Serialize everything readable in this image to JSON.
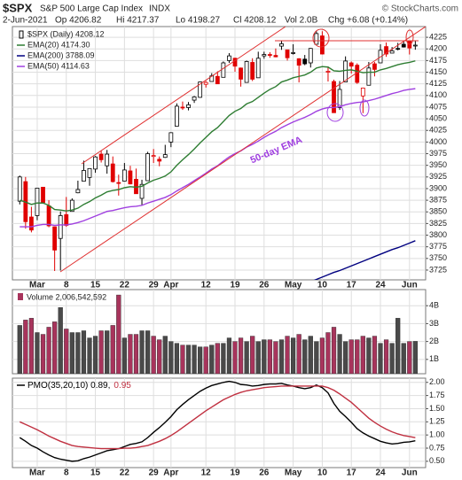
{
  "header": {
    "symbol": "$SPX",
    "name": "S&P 500 Large Cap Index",
    "exchange": "INDX",
    "copyright": "© StockCharts.com",
    "stats": [
      "2-Jun-2021",
      "Op 4206.82",
      "Hi 4217.37",
      "Lo 4198.27",
      "Cl 4208.12",
      "Vol 2.0B",
      "Chg +6.08 (+0.14%)"
    ]
  },
  "chart_data": [
    {
      "type": "candlestick",
      "name": "$SPX (Daily) 4208.12",
      "annotation": "50-day EMA",
      "legend": "upper left",
      "grid": true,
      "up_color": "#000000",
      "down_color": "#e00000",
      "categories": [
        null,
        null,
        null,
        "Mar",
        null,
        null,
        null,
        null,
        "8",
        null,
        null,
        null,
        null,
        "15",
        null,
        null,
        null,
        null,
        "22",
        null,
        null,
        null,
        null,
        "29",
        null,
        null,
        "Apr",
        null,
        null,
        null,
        null,
        null,
        "12",
        null,
        null,
        null,
        null,
        "19",
        null,
        null,
        null,
        null,
        "26",
        null,
        null,
        null,
        null,
        "May",
        null,
        null,
        null,
        null,
        "10",
        null,
        null,
        null,
        null,
        "17",
        null,
        null,
        null,
        null,
        "24",
        null,
        null,
        null,
        null,
        "Jun",
        null
      ],
      "open": [
        3873,
        3915,
        3839,
        3842,
        3903,
        3863,
        3818,
        3793,
        3844,
        3851,
        3891,
        3916,
        3924,
        3942,
        3974,
        3949,
        3953,
        3913,
        3916,
        3938,
        3920,
        3879,
        3917,
        3969,
        3963,
        3967,
        4000,
        4034,
        4075,
        4074,
        4090,
        4096,
        4124,
        4130,
        4141,
        4139,
        4175,
        4180,
        4159,
        4128,
        4171,
        4138,
        4185,
        4188,
        4186,
        4206,
        4198,
        4191,
        4179,
        4178,
        4170,
        4210,
        4228,
        4150,
        4130,
        4074,
        4129,
        4170,
        4165,
        4099,
        4122,
        4168,
        4170,
        4205,
        4191,
        4201,
        4210,
        4216,
        4206.82
      ],
      "high": [
        3928,
        3925,
        3861,
        3901,
        3903,
        3875,
        3818,
        3851,
        3882,
        3879,
        3917,
        3960,
        3944,
        3970,
        3981,
        3983,
        3969,
        3930,
        3955,
        3949,
        3943,
        3919,
        3979,
        3985,
        3969,
        3994,
        4021,
        4083,
        4087,
        4086,
        4099,
        4130,
        4131,
        4148,
        4152,
        4173,
        4191,
        4181,
        4160,
        4175,
        4180,
        4194,
        4194,
        4193,
        4201,
        4218,
        4198,
        4210,
        4180,
        4187,
        4202,
        4238,
        4238,
        4162,
        4134,
        4131,
        4184,
        4173,
        4169,
        4117,
        4172,
        4172,
        4210,
        4214,
        4204,
        4213,
        4218,
        4218,
        4217.37
      ],
      "low": [
        3866,
        3814,
        3806,
        3832,
        3868,
        3817,
        3723,
        3724,
        3818,
        3851,
        3890,
        3916,
        3906,
        3934,
        3956,
        3932,
        3913,
        3885,
        3915,
        3909,
        3889,
        3864,
        3917,
        3955,
        3948,
        3966,
        3989,
        4034,
        4069,
        4068,
        4084,
        4095,
        4117,
        4130,
        4125,
        4139,
        4170,
        4151,
        4119,
        4128,
        4131,
        4138,
        4179,
        4181,
        4182,
        4198,
        4175,
        4188,
        4128,
        4165,
        4160,
        4210,
        4188,
        4130,
        4063,
        4069,
        4129,
        4147,
        4125,
        4062,
        4122,
        4141,
        4170,
        4183,
        4191,
        4197,
        4203,
        4188,
        4198.27
      ],
      "close": [
        3925,
        3829,
        3811,
        3901,
        3870,
        3820,
        3768,
        3842,
        3821,
        3875,
        3898,
        3939,
        3943,
        3968,
        3962,
        3974,
        3915,
        3913,
        3940,
        3910,
        3889,
        3909,
        3975,
        3971,
        3959,
        3973,
        4020,
        4077,
        4074,
        4080,
        4097,
        4129,
        4128,
        4142,
        4125,
        4170,
        4185,
        4163,
        4135,
        4173,
        4135,
        4180,
        4188,
        4187,
        4183,
        4211,
        4181,
        4192,
        4165,
        4168,
        4201,
        4233,
        4189,
        4152,
        4063,
        4113,
        4174,
        4163,
        4128,
        4116,
        4159,
        4156,
        4197,
        4189,
        4196,
        4201,
        4204,
        4202,
        4208.12
      ],
      "series": [
        {
          "name": "EMA(20) 4174.30",
          "color": "#2e7d32",
          "values": [
            3875,
            3871,
            3866,
            3869,
            3869,
            3864,
            3855,
            3854,
            3852,
            3854,
            3858,
            3866,
            3872,
            3880,
            3886,
            3893,
            3896,
            3898,
            3902,
            3904,
            3903,
            3905,
            3912,
            3918,
            3922,
            3927,
            3936,
            3950,
            3962,
            3973,
            3985,
            3998,
            4010,
            4022,
            4031,
            4044,
            4057,
            4066,
            4072,
            4082,
            4087,
            4096,
            4105,
            4113,
            4119,
            4129,
            4133,
            4138,
            4141,
            4144,
            4150,
            4159,
            4162,
            4161,
            4153,
            4152,
            4154,
            4155,
            4152,
            4149,
            4150,
            4150,
            4155,
            4158,
            4162,
            4166,
            4169,
            4171,
            4174.3
          ]
        },
        {
          "name": "EMA(200) 3788.09",
          "color": "#000080",
          "values": [
            null,
            null,
            null,
            null,
            null,
            null,
            null,
            null,
            null,
            null,
            null,
            null,
            null,
            null,
            null,
            null,
            null,
            null,
            null,
            null,
            null,
            null,
            null,
            null,
            null,
            null,
            null,
            null,
            null,
            null,
            null,
            null,
            null,
            null,
            null,
            null,
            null,
            null,
            null,
            null,
            null,
            null,
            null,
            null,
            null,
            null,
            null,
            null,
            3690,
            3695,
            3700,
            3705,
            3710,
            3715,
            3720,
            3724,
            3729,
            3734,
            3739,
            3744,
            3749,
            3754,
            3759,
            3764,
            3769,
            3773,
            3778,
            3783,
            3788.09
          ]
        },
        {
          "name": "EMA(50) 4114.63",
          "color": "#a040e0",
          "values": [
            3818,
            3818,
            3818,
            3821,
            3823,
            3823,
            3821,
            3822,
            3822,
            3824,
            3827,
            3831,
            3836,
            3841,
            3846,
            3851,
            3853,
            3856,
            3859,
            3861,
            3862,
            3864,
            3869,
            3873,
            3877,
            3881,
            3887,
            3895,
            3902,
            3909,
            3917,
            3925,
            3933,
            3942,
            3949,
            3959,
            3968,
            3975,
            3981,
            3989,
            3995,
            4002,
            4010,
            4017,
            4023,
            4031,
            4037,
            4043,
            4048,
            4053,
            4059,
            4066,
            4071,
            4074,
            4074,
            4076,
            4080,
            4083,
            4085,
            4086,
            4089,
            4092,
            4096,
            4100,
            4104,
            4107,
            4111,
            4113,
            4114.63
          ]
        }
      ],
      "ylim": [
        3704,
        4248
      ],
      "yticks": [
        3725,
        3750,
        3775,
        3800,
        3825,
        3850,
        3875,
        3900,
        3925,
        3950,
        3975,
        4000,
        4025,
        4050,
        4075,
        4100,
        4125,
        4150,
        4175,
        4200,
        4225
      ]
    },
    {
      "type": "bar",
      "title": "Volume 2,006,542,592",
      "grid": true,
      "up_color": "#4a4a4a",
      "down_color": "#a8345c",
      "values": [
        2.9,
        3.2,
        3.3,
        2.5,
        2.4,
        2.8,
        3.1,
        3.9,
        2.7,
        2.5,
        2.5,
        2.6,
        2.2,
        2.3,
        2.6,
        2.6,
        2.9,
        4.6,
        2.2,
        2.4,
        2.4,
        2.6,
        2.6,
        2.3,
        2.1,
        2.3,
        2.0,
        1.9,
        1.8,
        1.8,
        1.8,
        1.7,
        1.7,
        1.8,
        1.9,
        1.9,
        2.2,
        2.0,
        2.2,
        2.0,
        2.3,
        2.0,
        2.1,
        2.1,
        2.0,
        2.1,
        2.3,
        2.2,
        2.4,
        2.1,
        2.3,
        2.0,
        2.2,
        2.5,
        2.8,
        2.4,
        2.0,
        2.1,
        2.1,
        2.3,
        2.2,
        2.3,
        1.9,
        2.1,
        1.9,
        3.3,
        1.9,
        2.0,
        2.01
      ],
      "ylim": [
        0.2,
        4.9
      ],
      "yticks": [
        {
          "value": 1,
          "label": "1B"
        },
        {
          "value": 2,
          "label": "2B"
        },
        {
          "value": 3,
          "label": "3B"
        },
        {
          "value": 4,
          "label": "4B"
        }
      ]
    },
    {
      "type": "line",
      "grid": true,
      "legend": "upper left",
      "categories": [
        null,
        null,
        null,
        "Mar",
        null,
        null,
        null,
        null,
        "8",
        null,
        null,
        null,
        null,
        "15",
        null,
        null,
        null,
        null,
        "22",
        null,
        null,
        null,
        null,
        "29",
        null,
        null,
        "Apr",
        null,
        null,
        null,
        null,
        null,
        "12",
        null,
        null,
        null,
        null,
        "19",
        null,
        null,
        null,
        null,
        "26",
        null,
        null,
        null,
        null,
        "May",
        null,
        null,
        null,
        null,
        "10",
        null,
        null,
        null,
        null,
        "17",
        null,
        null,
        null,
        null,
        "24",
        null,
        null,
        null,
        null,
        "Jun",
        null
      ],
      "series": [
        {
          "name": "PMO(35,20,10) 0.89,",
          "color": "#000000",
          "values": [
            0.95,
            0.88,
            0.8,
            0.75,
            0.68,
            0.62,
            0.57,
            0.54,
            0.52,
            0.5,
            0.51,
            0.55,
            0.58,
            0.62,
            0.66,
            0.7,
            0.72,
            0.74,
            0.78,
            0.82,
            0.84,
            0.87,
            0.95,
            1.05,
            1.14,
            1.24,
            1.35,
            1.48,
            1.58,
            1.67,
            1.75,
            1.83,
            1.89,
            1.94,
            1.97,
            2.0,
            2.02,
            2.0,
            1.96,
            1.95,
            1.93,
            1.94,
            1.96,
            1.97,
            1.97,
            1.98,
            1.95,
            1.93,
            1.9,
            1.88,
            1.9,
            1.95,
            1.9,
            1.8,
            1.6,
            1.45,
            1.35,
            1.24,
            1.12,
            1.04,
            0.98,
            0.93,
            0.88,
            0.85,
            0.83,
            0.84,
            0.86,
            0.87,
            0.89
          ]
        },
        {
          "name": "0.95",
          "color": "#c03040",
          "values": [
            1.25,
            1.2,
            1.15,
            1.1,
            1.04,
            0.98,
            0.93,
            0.88,
            0.84,
            0.8,
            0.78,
            0.77,
            0.76,
            0.75,
            0.74,
            0.74,
            0.74,
            0.74,
            0.75,
            0.75,
            0.76,
            0.78,
            0.8,
            0.84,
            0.88,
            0.93,
            0.99,
            1.06,
            1.14,
            1.22,
            1.3,
            1.38,
            1.46,
            1.53,
            1.6,
            1.67,
            1.72,
            1.77,
            1.81,
            1.84,
            1.86,
            1.88,
            1.9,
            1.91,
            1.92,
            1.93,
            1.93,
            1.93,
            1.93,
            1.93,
            1.93,
            1.93,
            1.93,
            1.9,
            1.85,
            1.78,
            1.7,
            1.62,
            1.52,
            1.42,
            1.32,
            1.24,
            1.17,
            1.11,
            1.06,
            1.02,
            0.99,
            0.97,
            0.95
          ]
        }
      ],
      "ylim": [
        0.38,
        2.08
      ],
      "yticks": [
        {
          "value": 0.5,
          "label": "0.50"
        },
        {
          "value": 0.75,
          "label": "0.75"
        },
        {
          "value": 1,
          "label": "1.00"
        },
        {
          "value": 1.25,
          "label": "1.25"
        },
        {
          "value": 1.5,
          "label": "1.50"
        },
        {
          "value": 1.75,
          "label": "1.75"
        },
        {
          "value": 2,
          "label": "2.00"
        }
      ]
    }
  ]
}
